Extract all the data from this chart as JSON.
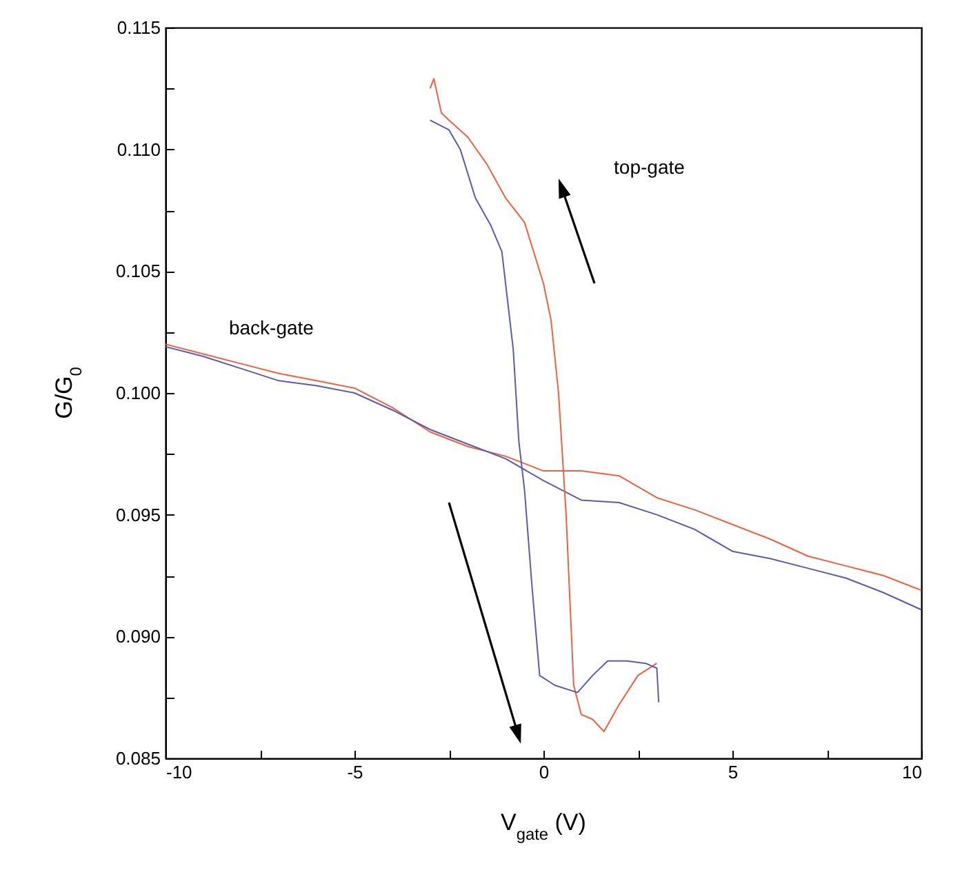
{
  "chart_data": {
    "type": "line",
    "xlabel": "V$_{gate}$ (V)",
    "ylabel": "G/G$_{0}$",
    "xlim": [
      -10,
      10
    ],
    "ylim": [
      0.085,
      0.115
    ],
    "xticks": [
      -10,
      {
        "value": -7.5,
        "label": null
      },
      -5,
      {
        "value": -2.5,
        "label": null
      },
      0,
      {
        "value": 2.5,
        "label": null
      },
      5,
      {
        "value": 7.5,
        "label": null
      },
      10
    ],
    "yticks": [
      0.085,
      {
        "value": 0.0875,
        "label": null
      },
      {
        "value": 0.09,
        "label": "0.090"
      },
      {
        "value": 0.0925,
        "label": null
      },
      0.095,
      {
        "value": 0.0975,
        "label": null
      },
      {
        "value": 0.1,
        "label": "0.100"
      },
      {
        "value": 0.1025,
        "label": null
      },
      0.105,
      {
        "value": 0.1075,
        "label": null
      },
      {
        "value": 0.11,
        "label": "0.110"
      },
      {
        "value": 0.1125,
        "label": null
      },
      0.115
    ],
    "grid": false,
    "legend": false,
    "marker": "none",
    "line_style": "solid",
    "series": [
      {
        "color": "#f0603c",
        "x": [
          -10,
          -9,
          -8,
          -7,
          -6,
          -5,
          -4,
          -3,
          -2,
          -1,
          0,
          1,
          2,
          3,
          4,
          5,
          6,
          7,
          8,
          9,
          10
        ],
        "values": [
          0.102,
          0.1016,
          0.1012,
          0.1008,
          0.1005,
          0.1002,
          0.0994,
          0.0984,
          0.0978,
          0.0974,
          0.0968,
          0.0968,
          0.0966,
          0.0957,
          0.0952,
          0.0946,
          0.094,
          0.0933,
          0.0929,
          0.0925,
          0.0919
        ]
      },
      {
        "color": "#5a5ab4",
        "x": [
          -10,
          -9,
          -8,
          -7,
          -6,
          -5,
          -4,
          -3,
          -2,
          -1,
          0,
          1,
          2,
          3,
          4,
          5,
          6,
          7,
          8,
          9,
          10
        ],
        "values": [
          0.1019,
          0.1015,
          0.101,
          0.1005,
          0.1003,
          0.1,
          0.0993,
          0.0985,
          0.0979,
          0.0973,
          0.0964,
          0.0956,
          0.0955,
          0.095,
          0.0944,
          0.0935,
          0.0932,
          0.0928,
          0.0924,
          0.0918,
          0.0911
        ]
      },
      {
        "color": "#f0603c",
        "x": [
          -3,
          -2.9,
          -2.7,
          -2.5,
          -2,
          -1.5,
          -1,
          -0.5,
          0,
          0.2,
          0.4,
          0.6,
          0.8,
          1,
          1.3,
          1.6,
          2,
          2.5,
          3
        ],
        "values": [
          0.1125,
          0.1129,
          0.1115,
          0.1112,
          0.1105,
          0.1094,
          0.108,
          0.107,
          0.1045,
          0.103,
          0.1,
          0.095,
          0.088,
          0.0868,
          0.0866,
          0.0861,
          0.0872,
          0.0884,
          0.0889
        ]
      },
      {
        "color": "#5a5ab4",
        "x": [
          -3,
          -2.5,
          -2.2,
          -1.8,
          -1.4,
          -1.1,
          -0.8,
          -0.65,
          -0.5,
          -0.3,
          -0.1,
          0.3,
          0.9,
          1.3,
          1.7,
          2.2,
          2.7,
          3,
          3.05
        ],
        "values": [
          0.1112,
          0.1108,
          0.11,
          0.108,
          0.1069,
          0.1058,
          0.1018,
          0.098,
          0.096,
          0.092,
          0.0884,
          0.088,
          0.0877,
          0.0884,
          0.089,
          0.089,
          0.0889,
          0.0887,
          0.0873
        ]
      }
    ],
    "annotations": [
      "top-gate",
      "back-gate"
    ]
  }
}
